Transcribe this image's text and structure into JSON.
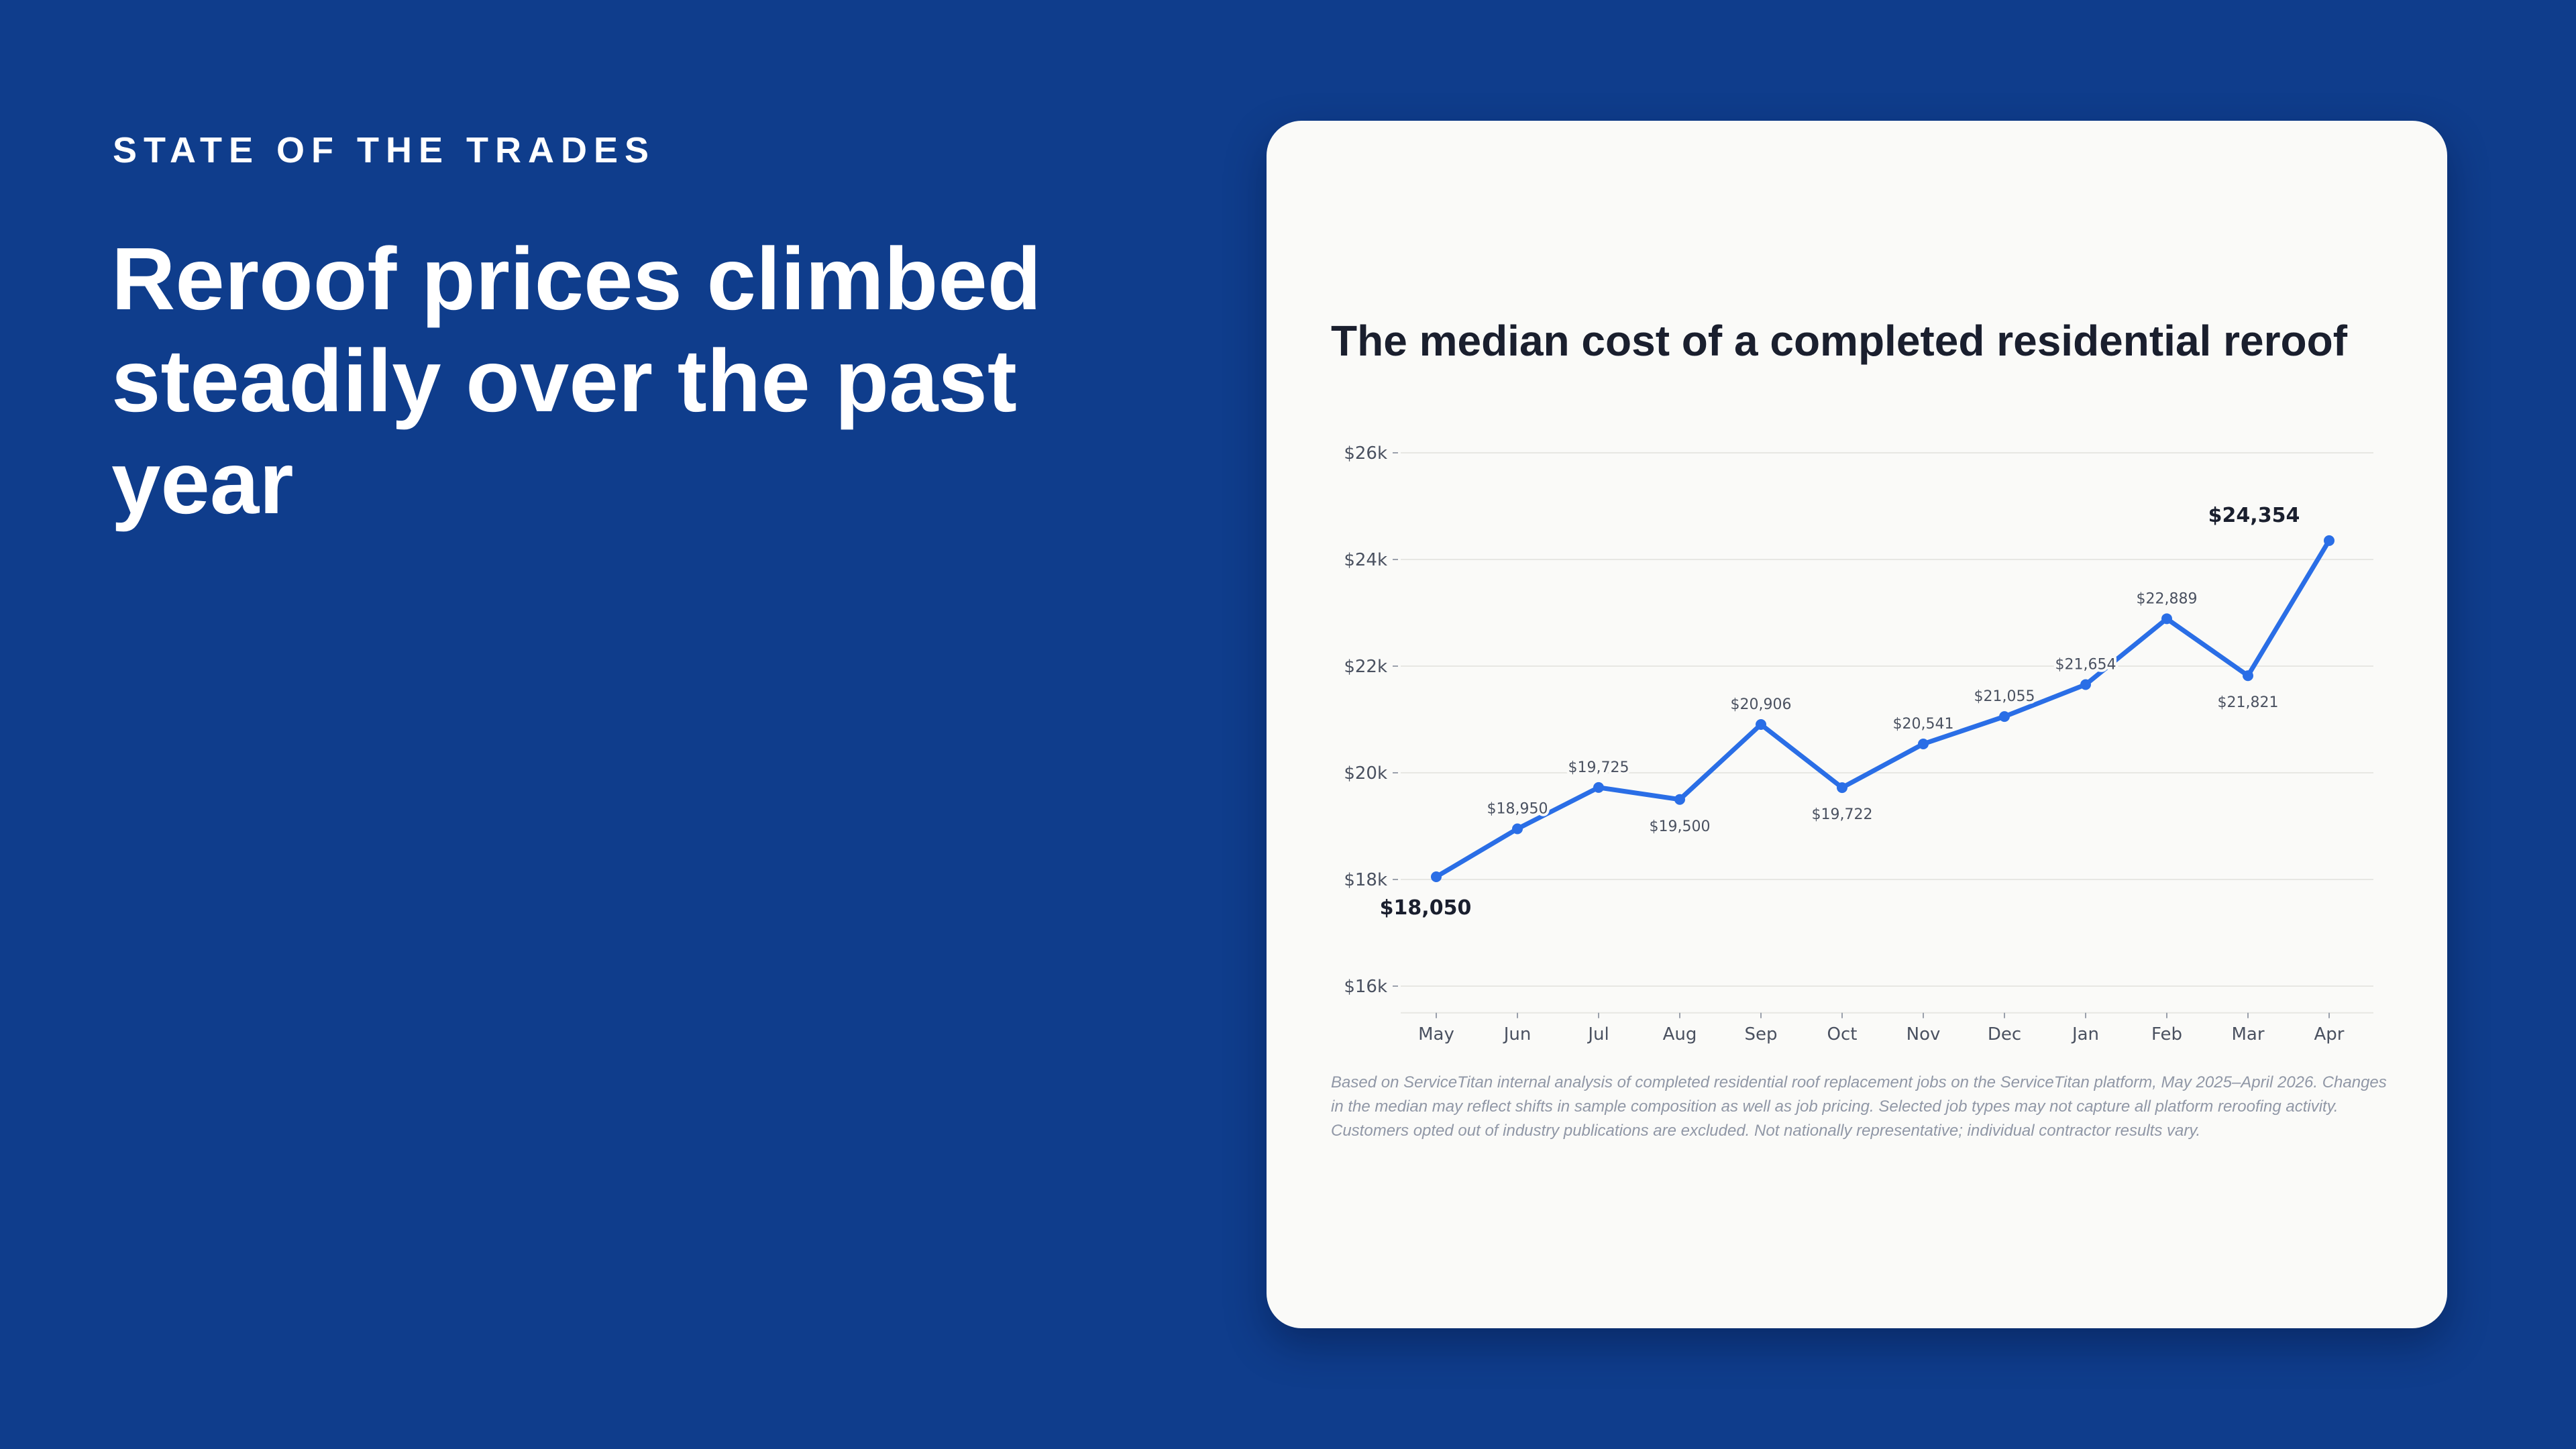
{
  "page": {
    "eyebrow": "STATE OF THE TRADES",
    "headline": "Reroof prices climbed steadily over the past year",
    "background_color": "#0f3d8c",
    "card_color": "#fafaf8"
  },
  "chart_data": {
    "type": "line",
    "title": "The median cost of a completed residential reroof",
    "xlabel": "",
    "ylabel": "",
    "categories": [
      "May",
      "Jun",
      "Jul",
      "Aug",
      "Sep",
      "Oct",
      "Nov",
      "Dec",
      "Jan",
      "Feb",
      "Mar",
      "Apr"
    ],
    "series": [
      {
        "values": [
          18050,
          18950,
          19725,
          19500,
          20906,
          19722,
          20541,
          21055,
          21654,
          22889,
          21821,
          24354
        ],
        "color": "#2a6ee6"
      }
    ],
    "data_labels": [
      "$18,050",
      "$18,950",
      "$19,725",
      "$19,500",
      "$20,906",
      "$19,722",
      "$20,541",
      "$21,055",
      "$21,654",
      "$22,889",
      "$21,821",
      "$24,354"
    ],
    "highlighted_labels": [
      0,
      11
    ],
    "ylim": [
      15500,
      26000
    ],
    "yticks": [
      16000,
      18000,
      20000,
      22000,
      24000,
      26000
    ],
    "ytick_labels": [
      "$16k",
      "$18k",
      "$20k",
      "$22k",
      "$24k",
      "$26k"
    ],
    "grid": true,
    "footnote": "Based on ServiceTitan internal analysis of completed residential roof replacement jobs on the ServiceTitan platform, May 2025–April 2026. Changes in the median may reflect shifts in sample composition as well as job pricing. Selected job types may not capture all platform reroofing activity. Customers opted out of industry publications are excluded. Not nationally representative; individual contractor results vary."
  }
}
